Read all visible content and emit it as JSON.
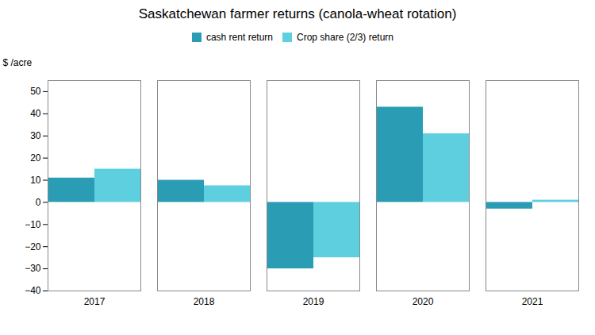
{
  "chart_data": {
    "type": "bar",
    "title": "Saskatchewan farmer returns (canola-wheat rotation)",
    "y_label": "$ /acre",
    "categories": [
      "2017",
      "2018",
      "2019",
      "2020",
      "2021"
    ],
    "series": [
      {
        "name": "cash rent return",
        "color": "#2a9db5",
        "values": [
          11,
          10,
          -30,
          43,
          -3
        ]
      },
      {
        "name": "Crop share (2/3) return",
        "color": "#5dcfdf",
        "values": [
          15,
          7.5,
          -25,
          31,
          1
        ]
      }
    ],
    "ylim": [
      -40,
      55
    ],
    "yticks": [
      -40,
      -30,
      -20,
      -10,
      0,
      10,
      20,
      30,
      40,
      50
    ],
    "grid": false,
    "legend": "upper center"
  }
}
